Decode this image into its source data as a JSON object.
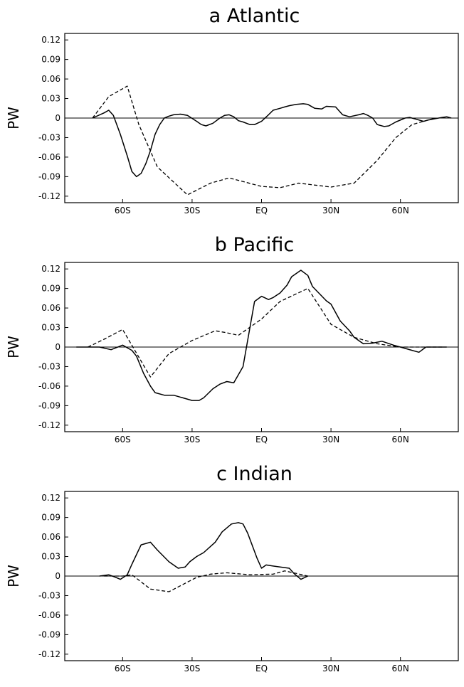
{
  "chart_data": [
    {
      "type": "line",
      "title": "a   Atlantic",
      "ylabel": "PW",
      "xlabel": "",
      "xlim": [
        -85,
        85
      ],
      "ylim": [
        -0.13,
        0.13
      ],
      "yticks": [
        0.12,
        0.09,
        0.06,
        0.03,
        0,
        -0.03,
        -0.06,
        -0.09,
        -0.12
      ],
      "ytick_labels": [
        "0.12",
        "0.09",
        "0.06",
        "0.03",
        "0",
        "-0.03",
        "-0.06",
        "-0.09",
        "-0.12"
      ],
      "xticks": [
        -60,
        -30,
        0,
        30,
        60
      ],
      "xtick_labels": [
        "60S",
        "30S",
        "EQ",
        "30N",
        "60N"
      ],
      "zero_line": true,
      "series": [
        {
          "style": "solid",
          "x": [
            -73,
            -68,
            -66,
            -64,
            -61,
            -58,
            -56,
            -54,
            -52,
            -50,
            -48,
            -46,
            -44,
            -42,
            -40,
            -38,
            -35,
            -32,
            -28,
            -26,
            -24,
            -21,
            -18,
            -16,
            -14,
            -12,
            -10,
            -8,
            -5,
            -3,
            0,
            3,
            5,
            8,
            10,
            12,
            15,
            18,
            20,
            23,
            26,
            28,
            32,
            35,
            38,
            42,
            44,
            46,
            48,
            50,
            53,
            55,
            58,
            62,
            64,
            67,
            70,
            72,
            75,
            78,
            80,
            82
          ],
          "y": [
            0,
            0.008,
            0.012,
            0.004,
            -0.025,
            -0.058,
            -0.082,
            -0.09,
            -0.085,
            -0.07,
            -0.05,
            -0.025,
            -0.01,
            0,
            0.003,
            0.005,
            0.006,
            0.004,
            -0.005,
            -0.01,
            -0.012,
            -0.008,
            0,
            0.004,
            0.005,
            0.002,
            -0.004,
            -0.006,
            -0.01,
            -0.01,
            -0.005,
            0.005,
            0.012,
            0.015,
            0.017,
            0.019,
            0.021,
            0.022,
            0.021,
            0.015,
            0.014,
            0.018,
            0.017,
            0.005,
            0.002,
            0.005,
            0.007,
            0.004,
            0,
            -0.01,
            -0.013,
            -0.012,
            -0.006,
            0,
            0.001,
            -0.002,
            -0.005,
            -0.003,
            -0.001,
            0.001,
            0.002,
            0
          ]
        },
        {
          "style": "dashed",
          "x": [
            -73,
            -66,
            -58,
            -53,
            -45,
            -32,
            -22,
            -14,
            0,
            8,
            16,
            30,
            40,
            50,
            58,
            65,
            70,
            75
          ],
          "y": [
            0,
            0.033,
            0.049,
            -0.01,
            -0.075,
            -0.118,
            -0.1,
            -0.092,
            -0.105,
            -0.107,
            -0.1,
            -0.106,
            -0.1,
            -0.065,
            -0.03,
            -0.01,
            -0.005,
            0
          ]
        }
      ]
    },
    {
      "type": "line",
      "title": "b   Pacific",
      "ylabel": "PW",
      "xlabel": "",
      "xlim": [
        -85,
        85
      ],
      "ylim": [
        -0.13,
        0.13
      ],
      "yticks": [
        0.12,
        0.09,
        0.06,
        0.03,
        0,
        -0.03,
        -0.06,
        -0.09,
        -0.12
      ],
      "ytick_labels": [
        "0.12",
        "0.09",
        "0.06",
        "0.03",
        "0",
        "-0.03",
        "-0.06",
        "-0.09",
        "-0.12"
      ],
      "xticks": [
        -60,
        -30,
        0,
        30,
        60
      ],
      "xtick_labels": [
        "60S",
        "30S",
        "EQ",
        "30N",
        "60N"
      ],
      "zero_line": true,
      "series": [
        {
          "style": "solid",
          "x": [
            -80,
            -70,
            -65,
            -60,
            -56,
            -54,
            -51,
            -48,
            -46,
            -42,
            -38,
            -34,
            -30,
            -27,
            -25,
            -21,
            -18,
            -15,
            -12,
            -8,
            -5,
            -3,
            0,
            3,
            5,
            8,
            11,
            13,
            17,
            20,
            22,
            25,
            28,
            30,
            34,
            38,
            40,
            44,
            48,
            52,
            57,
            60,
            65,
            68,
            71,
            75,
            80
          ],
          "y": [
            0,
            0,
            -0.004,
            0.003,
            -0.005,
            -0.014,
            -0.04,
            -0.06,
            -0.07,
            -0.074,
            -0.074,
            -0.078,
            -0.082,
            -0.082,
            -0.078,
            -0.064,
            -0.057,
            -0.053,
            -0.055,
            -0.03,
            0.03,
            0.07,
            0.078,
            0.073,
            0.076,
            0.083,
            0.095,
            0.108,
            0.118,
            0.11,
            0.093,
            0.082,
            0.071,
            0.066,
            0.04,
            0.025,
            0.015,
            0.005,
            0.006,
            0.009,
            0.003,
            0,
            -0.005,
            -0.008,
            0,
            0,
            0
          ]
        },
        {
          "style": "dashed",
          "x": [
            -75,
            -68,
            -60,
            -48,
            -40,
            -30,
            -20,
            -15,
            -10,
            -4,
            0,
            8,
            20,
            30,
            40,
            50,
            60,
            70,
            78
          ],
          "y": [
            0,
            0.012,
            0.027,
            -0.046,
            -0.01,
            0.01,
            0.025,
            0.022,
            0.018,
            0.033,
            0.043,
            0.07,
            0.09,
            0.035,
            0.015,
            0.005,
            0,
            0,
            0
          ]
        }
      ]
    },
    {
      "type": "line",
      "title": "c   Indian",
      "ylabel": "PW",
      "xlabel": "",
      "xlim": [
        -85,
        85
      ],
      "ylim": [
        -0.13,
        0.13
      ],
      "yticks": [
        0.12,
        0.09,
        0.06,
        0.03,
        0,
        -0.03,
        -0.06,
        -0.09,
        -0.12
      ],
      "ytick_labels": [
        "0.12",
        "0.09",
        "0.06",
        "0.03",
        "0",
        "-0.03",
        "-0.06",
        "-0.09",
        "-0.12"
      ],
      "xticks": [
        -60,
        -30,
        0,
        30,
        60
      ],
      "xtick_labels": [
        "60S",
        "30S",
        "EQ",
        "30N",
        "60N"
      ],
      "zero_line": true,
      "series": [
        {
          "style": "solid",
          "x": [
            -70,
            -66,
            -63,
            -61,
            -58,
            -56,
            -52,
            -48,
            -45,
            -40,
            -36,
            -33,
            -31,
            -28,
            -25,
            -20,
            -17,
            -13,
            -10,
            -8,
            -6,
            -2,
            0,
            2,
            4,
            8,
            12,
            14,
            17,
            20
          ],
          "y": [
            0,
            0.002,
            -0.002,
            -0.005,
            0.002,
            0.018,
            0.048,
            0.052,
            0.04,
            0.022,
            0.012,
            0.014,
            0.022,
            0.03,
            0.036,
            0.052,
            0.068,
            0.08,
            0.082,
            0.08,
            0.066,
            0.028,
            0.012,
            0.017,
            0.016,
            0.014,
            0.012,
            0.004,
            -0.005,
            0
          ]
        },
        {
          "style": "dashed",
          "x": [
            -68,
            -60,
            -56,
            -48,
            -40,
            -28,
            -22,
            -15,
            -5,
            5,
            10,
            15,
            20
          ],
          "y": [
            0,
            0,
            0.002,
            -0.02,
            -0.024,
            -0.002,
            0.003,
            0.005,
            0.002,
            0.003,
            0.008,
            0.004,
            0
          ]
        }
      ]
    }
  ]
}
